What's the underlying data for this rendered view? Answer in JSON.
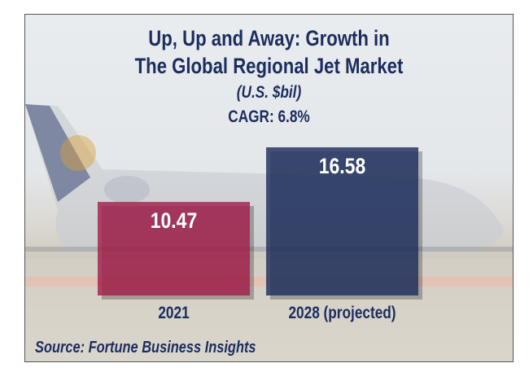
{
  "chart_data": {
    "type": "bar",
    "title": "Up, Up and Away: Growth in The Global Regional Jet Market",
    "title_lines": [
      "Up, Up and Away: Growth in",
      "The Global Regional Jet Market"
    ],
    "subtitle": "(U.S. $bil)",
    "annotation": "CAGR: 6.8%",
    "categories": [
      "2021",
      "2028 (projected)"
    ],
    "values": [
      10.47,
      16.58
    ],
    "value_labels": [
      "10.47",
      "16.58"
    ],
    "colors": [
      "#a31f4c",
      "#1f2f5e"
    ],
    "source": "Source: Fortune Business Insights",
    "grid": false,
    "legend": "none"
  }
}
